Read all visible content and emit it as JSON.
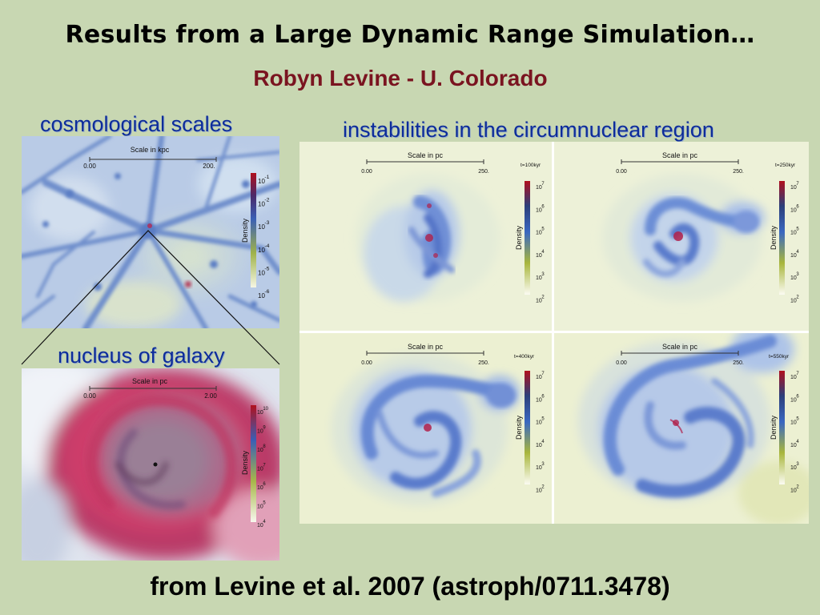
{
  "slide": {
    "title": "Results from a Large Dynamic Range Simulation…",
    "subtitle": "Robyn Levine - U. Colorado",
    "footer": "from Levine et al. 2007 (astroph/0711.3478)"
  },
  "captions": {
    "cosmological": "cosmological scales",
    "nucleus": "nucleus of galaxy",
    "instabilities": "instabilities in the circumnuclear region"
  },
  "colors": {
    "background": "#c8d7b2",
    "subtitle": "#7a1420",
    "caption": "#0d2c9a",
    "density_high": "#b0101e",
    "density_mid": "#3a5fb5",
    "density_low": "#d6de6a"
  },
  "panels": {
    "cosmo": {
      "scale_label": "Scale in kpc",
      "scale_start": "0.00",
      "scale_end": "200.",
      "colorbar_label": "Density",
      "ticks": [
        {
          "base": "10",
          "exp": "-1"
        },
        {
          "base": "10",
          "exp": "-2"
        },
        {
          "base": "10",
          "exp": "-3"
        },
        {
          "base": "10",
          "exp": "-4"
        },
        {
          "base": "10",
          "exp": "-5"
        },
        {
          "base": "10",
          "exp": "-6"
        }
      ]
    },
    "nucleus": {
      "scale_label": "Scale in pc",
      "scale_start": "0.00",
      "scale_end": "2.00",
      "colorbar_label": "Density",
      "ticks": [
        {
          "base": "10",
          "exp": "10"
        },
        {
          "base": "10",
          "exp": "9"
        },
        {
          "base": "10",
          "exp": "8"
        },
        {
          "base": "10",
          "exp": "7"
        },
        {
          "base": "10",
          "exp": "6"
        },
        {
          "base": "10",
          "exp": "5"
        },
        {
          "base": "10",
          "exp": "4"
        }
      ]
    },
    "t100": {
      "scale_label": "Scale in pc",
      "scale_start": "0.00",
      "scale_end": "250.",
      "time_label": "t=100kyr",
      "colorbar_label": "Density",
      "ticks": [
        {
          "base": "10",
          "exp": "7"
        },
        {
          "base": "10",
          "exp": "6"
        },
        {
          "base": "10",
          "exp": "5"
        },
        {
          "base": "10",
          "exp": "4"
        },
        {
          "base": "10",
          "exp": "3"
        },
        {
          "base": "10",
          "exp": "2"
        }
      ]
    },
    "t250": {
      "scale_label": "Scale in pc",
      "scale_start": "0.00",
      "scale_end": "250.",
      "time_label": "t=250kyr",
      "colorbar_label": "Density",
      "ticks": [
        {
          "base": "10",
          "exp": "7"
        },
        {
          "base": "10",
          "exp": "6"
        },
        {
          "base": "10",
          "exp": "5"
        },
        {
          "base": "10",
          "exp": "4"
        },
        {
          "base": "10",
          "exp": "3"
        },
        {
          "base": "10",
          "exp": "2"
        }
      ]
    },
    "t400": {
      "scale_label": "Scale in pc",
      "scale_start": "0.00",
      "scale_end": "250.",
      "time_label": "t=400kyr",
      "colorbar_label": "Density",
      "ticks": [
        {
          "base": "10",
          "exp": "7"
        },
        {
          "base": "10",
          "exp": "6"
        },
        {
          "base": "10",
          "exp": "5"
        },
        {
          "base": "10",
          "exp": "4"
        },
        {
          "base": "10",
          "exp": "3"
        },
        {
          "base": "10",
          "exp": "2"
        }
      ]
    },
    "t550": {
      "scale_label": "Scale in pc",
      "scale_start": "0.00",
      "scale_end": "250.",
      "time_label": "t=550kyr",
      "colorbar_label": "Density",
      "ticks": [
        {
          "base": "10",
          "exp": "7"
        },
        {
          "base": "10",
          "exp": "6"
        },
        {
          "base": "10",
          "exp": "5"
        },
        {
          "base": "10",
          "exp": "4"
        },
        {
          "base": "10",
          "exp": "3"
        },
        {
          "base": "10",
          "exp": "2"
        }
      ]
    }
  }
}
